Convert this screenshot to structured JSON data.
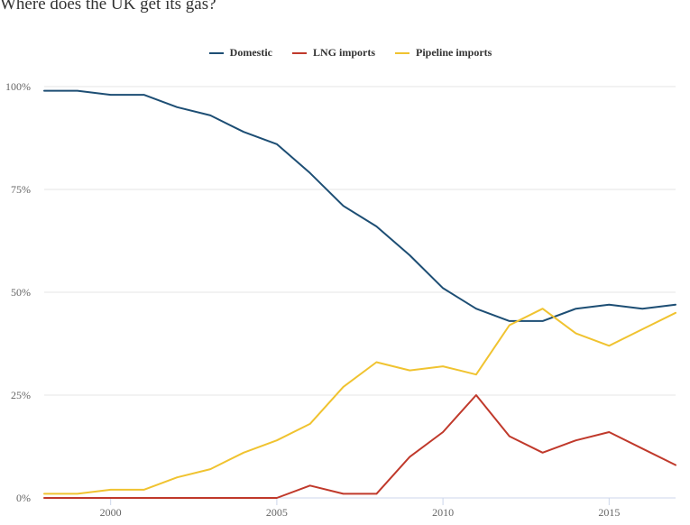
{
  "chart_data": {
    "type": "line",
    "title": "Where does the UK get its gas?",
    "xlabel": "",
    "ylabel": "",
    "x": [
      1998,
      1999,
      2000,
      2001,
      2002,
      2003,
      2004,
      2005,
      2006,
      2007,
      2008,
      2009,
      2010,
      2011,
      2012,
      2013,
      2014,
      2015,
      2016,
      2017
    ],
    "series": [
      {
        "name": "Domestic",
        "color": "#1d4e74",
        "values": [
          99,
          99,
          98,
          98,
          95,
          93,
          89,
          86,
          79,
          71,
          66,
          59,
          51,
          46,
          43,
          43,
          46,
          47,
          46,
          47
        ]
      },
      {
        "name": "LNG imports",
        "color": "#c0392b",
        "values": [
          0,
          0,
          0,
          0,
          0,
          0,
          0,
          0,
          3,
          1,
          1,
          10,
          16,
          25,
          15,
          11,
          14,
          16,
          12,
          8
        ]
      },
      {
        "name": "Pipeline imports",
        "color": "#f0c330",
        "values": [
          1,
          1,
          2,
          2,
          5,
          7,
          11,
          14,
          18,
          27,
          33,
          31,
          32,
          30,
          42,
          46,
          40,
          37,
          41,
          45
        ]
      }
    ],
    "xlim": [
      1998,
      2017
    ],
    "ylim": [
      0,
      100
    ],
    "x_ticks": [
      2000,
      2005,
      2010,
      2015
    ],
    "x_tick_labels": [
      "2000",
      "2005",
      "2010",
      "2015"
    ],
    "y_ticks": [
      0,
      25,
      50,
      75,
      100
    ],
    "y_tick_labels": [
      "0%",
      "25%",
      "50%",
      "75%",
      "100%"
    ],
    "grid": true,
    "legend_position": "top-center"
  }
}
